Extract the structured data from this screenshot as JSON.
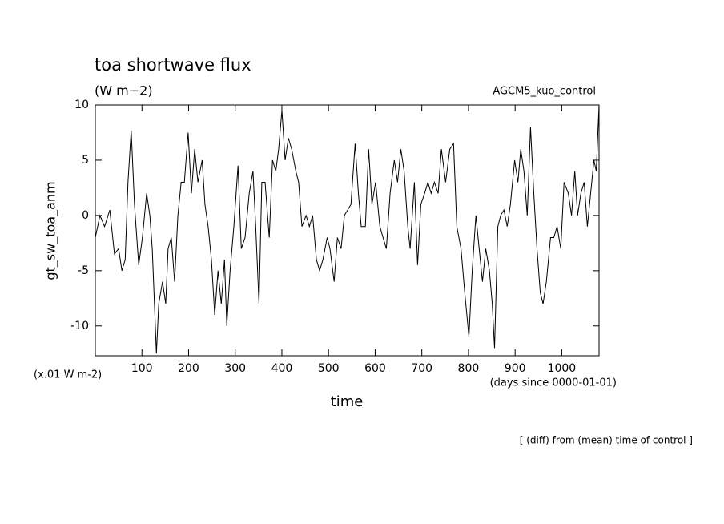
{
  "chart_data": {
    "type": "line",
    "title": "toa shortwave flux",
    "subtitle": "(W m−2)",
    "annotation": "AGCM5_kuo_control",
    "y_label": "gt_sw_toa_anm",
    "y_unit": "(x.01 W m-2)",
    "x_label": "time",
    "x_unit": "(days since 0000-01-01)",
    "footnote": "[ (diff) from (mean) time of control ]",
    "xlim": [
      0,
      1080
    ],
    "ylim": [
      -12.7,
      10
    ],
    "xticks": [
      100,
      200,
      300,
      400,
      500,
      600,
      700,
      800,
      900,
      1000
    ],
    "yticks": [
      -10,
      -5,
      0,
      5,
      10
    ],
    "series": [
      {
        "name": "gt_sw_toa_anm",
        "color": "#000000",
        "x": [
          0,
          10,
          20,
          31,
          41,
          50,
          57,
          64,
          70,
          77,
          84,
          93,
          101,
          110,
          117,
          122,
          131,
          136,
          144,
          151,
          156,
          163,
          170,
          177,
          184,
          191,
          199,
          206,
          213,
          220,
          229,
          235,
          242,
          249,
          256,
          263,
          270,
          277,
          282,
          289,
          297,
          306,
          313,
          321,
          330,
          338,
          344,
          351,
          357,
          364,
          373,
          380,
          387,
          393,
          400,
          407,
          414,
          421,
          430,
          436,
          443,
          452,
          459,
          466,
          474,
          481,
          488,
          497,
          503,
          512,
          519,
          527,
          534,
          541,
          548,
          557,
          564,
          570,
          579,
          586,
          593,
          601,
          610,
          617,
          624,
          632,
          641,
          648,
          655,
          662,
          670,
          675,
          684,
          691,
          698,
          706,
          713,
          720,
          727,
          735,
          742,
          751,
          760,
          768,
          775,
          784,
          792,
          801,
          808,
          816,
          823,
          830,
          837,
          845,
          851,
          856,
          863,
          869,
          876,
          883,
          890,
          899,
          906,
          912,
          919,
          926,
          933,
          940,
          947,
          954,
          960,
          967,
          976,
          983,
          990,
          998,
          1005,
          1014,
          1021,
          1028,
          1034,
          1041,
          1048,
          1055,
          1062,
          1069,
          1074,
          1080
        ],
        "values": [
          -2,
          0,
          -1,
          0.5,
          -3.5,
          -3,
          -5,
          -4,
          3,
          7.7,
          1,
          -4.5,
          -2,
          2,
          0,
          -3,
          -12.5,
          -8,
          -6,
          -8,
          -3,
          -2,
          -6,
          0,
          3,
          3,
          7.5,
          2,
          6,
          3,
          5,
          1,
          -1,
          -4,
          -9,
          -5,
          -8,
          -4,
          -10,
          -5,
          -1,
          4.5,
          -3,
          -2,
          2,
          4,
          -1,
          -8,
          3,
          3,
          -2,
          5,
          4,
          6,
          9.5,
          5,
          7,
          6,
          4,
          3,
          -1,
          0,
          -1,
          0,
          -4,
          -5,
          -4,
          -2,
          -3,
          -6,
          -2,
          -3,
          0,
          0.5,
          1,
          6.5,
          2,
          -1,
          -1,
          6,
          1,
          3,
          -1,
          -2,
          -3,
          2,
          5,
          3,
          6,
          4,
          -1,
          -3,
          3,
          -4.5,
          1,
          2,
          3,
          2,
          3,
          2,
          6,
          3,
          6,
          6.5,
          -1,
          -3,
          -7,
          -11,
          -5,
          0,
          -3,
          -6,
          -3,
          -5,
          -8,
          -12,
          -1,
          0,
          0.5,
          -1,
          1,
          5,
          3,
          6,
          4,
          0,
          8,
          2,
          -3,
          -7,
          -8,
          -6,
          -2,
          -2,
          -1,
          -3,
          3,
          2,
          0,
          4,
          0,
          2,
          3,
          -1,
          2,
          5,
          4,
          10
        ]
      }
    ]
  }
}
